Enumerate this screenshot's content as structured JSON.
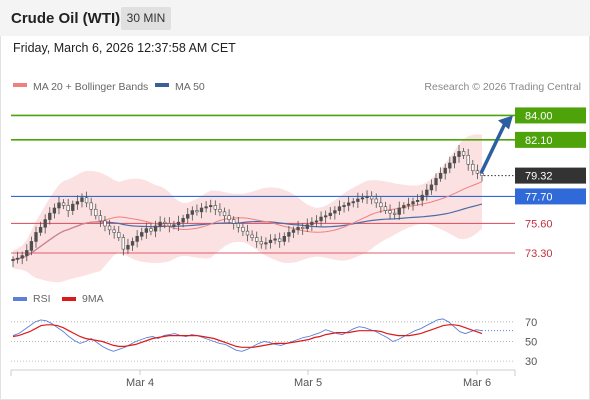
{
  "header": {
    "instrument": "Crude Oil (WTI)",
    "timeframe": "30 MIN"
  },
  "datetime": "Friday, March 6, 2026 12:37:58 AM CET",
  "source": "Research © 2026 Trading Central",
  "legend": {
    "bollinger": "MA 20 + Bollinger Bands",
    "ma50": "MA 50",
    "rsi": "RSI",
    "rsi_ma": "9MA"
  },
  "colors": {
    "price_candle": "#4f4f4f",
    "bollinger_band": "#f8c9c9",
    "ma20": "#f08080",
    "ma50": "#4d6da8",
    "target_line": "#4ea30a",
    "pivot_line": "#2f6ad8",
    "support_line": "#e05b6c",
    "current_price_tag": "#333333",
    "arrow": "#2d5fa0",
    "rsi": "#5a80d8",
    "rsi_ma": "#dd1a1a"
  },
  "chart_data": [
    {
      "type": "candlestick",
      "x_labels": [
        "Mar 4",
        "Mar 5",
        "Mar 6"
      ],
      "y_range": [
        71.2,
        85.2
      ],
      "grid": false,
      "current_price": "79.32",
      "levels": [
        {
          "value": 84.0,
          "label": "84.00",
          "kind": "target"
        },
        {
          "value": 82.1,
          "label": "82.10",
          "kind": "target"
        },
        {
          "value": 77.7,
          "label": "77.70",
          "kind": "pivot"
        },
        {
          "value": 75.6,
          "label": "75.60",
          "kind": "support"
        },
        {
          "value": 73.3,
          "label": "73.30",
          "kind": "support"
        }
      ],
      "close_series": [
        72.8,
        72.9,
        73.1,
        73.5,
        74.2,
        74.9,
        75.3,
        75.9,
        76.4,
        76.8,
        77.2,
        77.0,
        76.6,
        77.1,
        77.3,
        77.6,
        77.2,
        76.7,
        76.2,
        75.8,
        75.4,
        75.1,
        74.9,
        74.5,
        73.6,
        73.9,
        74.2,
        74.6,
        74.9,
        75.2,
        75.0,
        75.4,
        75.7,
        75.6,
        75.4,
        75.5,
        75.7,
        76.0,
        76.3,
        76.6,
        76.5,
        76.8,
        76.9,
        77.0,
        76.7,
        76.5,
        76.2,
        75.9,
        75.6,
        75.3,
        75.0,
        74.7,
        74.5,
        74.2,
        74.0,
        74.1,
        74.3,
        74.4,
        74.2,
        74.6,
        74.9,
        75.1,
        75.3,
        75.2,
        75.5,
        75.7,
        75.8,
        76.1,
        76.2,
        76.4,
        76.6,
        76.9,
        77.0,
        77.2,
        77.3,
        77.5,
        77.6,
        77.7,
        77.5,
        77.2,
        76.9,
        76.6,
        76.4,
        76.3,
        76.8,
        77.0,
        77.1,
        77.3,
        77.4,
        77.8,
        78.2,
        78.6,
        79.1,
        79.5,
        79.9,
        80.3,
        80.8,
        81.2,
        80.9,
        80.2,
        79.7,
        79.5,
        79.32
      ],
      "arrow": {
        "from": 79.5,
        "to": 84.0
      }
    },
    {
      "type": "line",
      "name": "RSI",
      "y_ticks": [
        70,
        50,
        30
      ],
      "y_range": [
        25,
        80
      ],
      "series": [
        {
          "name": "RSI",
          "values": [
            56,
            58,
            62,
            66,
            70,
            72,
            71,
            68,
            64,
            60,
            55,
            51,
            48,
            50,
            53,
            49,
            45,
            42,
            40,
            42,
            44,
            47,
            50,
            52,
            54,
            55,
            53,
            56,
            57,
            58,
            56,
            55,
            57,
            56,
            54,
            52,
            50,
            48,
            47,
            44,
            41,
            40,
            42,
            45,
            48,
            50,
            49,
            47,
            46,
            48,
            50,
            52,
            54,
            55,
            57,
            59,
            62,
            60,
            58,
            57,
            60,
            63,
            65,
            64,
            62,
            60,
            57,
            54,
            50,
            52,
            55,
            58,
            61,
            63,
            66,
            69,
            72,
            73,
            70,
            65,
            60,
            58,
            60,
            62,
            61
          ]
        },
        {
          "name": "9MA",
          "values": [
            55,
            56,
            58,
            60,
            63,
            66,
            67,
            67,
            66,
            64,
            61,
            58,
            55,
            53,
            52,
            51,
            50,
            48,
            46,
            45,
            45,
            46,
            47,
            49,
            51,
            53,
            54,
            55,
            56,
            56,
            56,
            56,
            56,
            56,
            55,
            54,
            53,
            51,
            49,
            47,
            45,
            44,
            44,
            44,
            45,
            46,
            47,
            48,
            48,
            48,
            49,
            50,
            51,
            52,
            54,
            55,
            57,
            58,
            59,
            59,
            59,
            60,
            61,
            61,
            61,
            61,
            60,
            58,
            57,
            56,
            56,
            56,
            57,
            58,
            60,
            62,
            64,
            66,
            67,
            67,
            66,
            64,
            62,
            60,
            58
          ]
        }
      ]
    }
  ]
}
